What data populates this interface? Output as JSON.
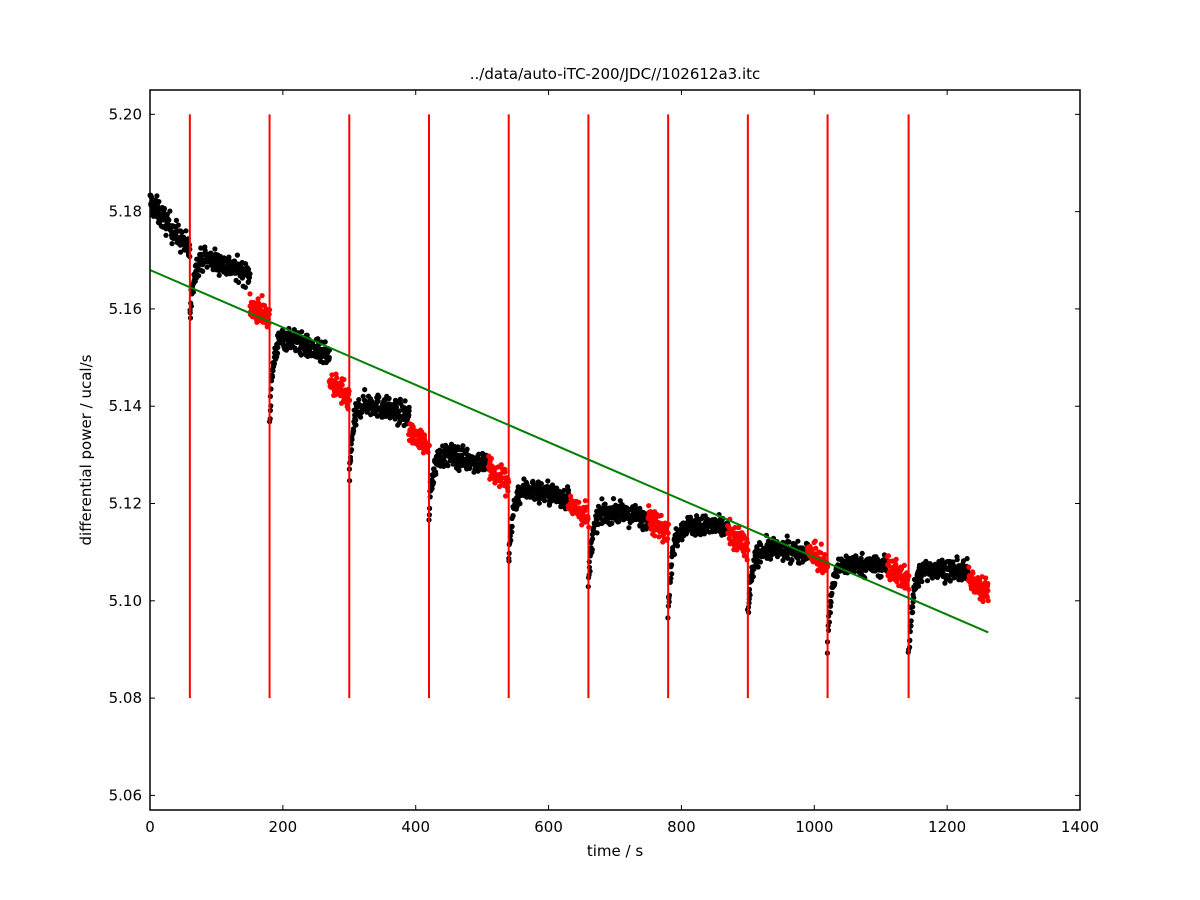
{
  "chart_data": {
    "type": "scatter",
    "title": "../data/auto-iTC-200/JDC//102612a3.itc",
    "xlabel": "time / s",
    "ylabel": "differential power / ucal/s",
    "xlim": [
      0,
      1400
    ],
    "ylim": [
      5.057,
      5.205
    ],
    "xticks": [
      0,
      200,
      400,
      600,
      800,
      1000,
      1200,
      1400
    ],
    "xtick_labels": [
      "0",
      "200",
      "400",
      "600",
      "800",
      "1000",
      "1200",
      "1400"
    ],
    "yticks": [
      5.06,
      5.08,
      5.1,
      5.12,
      5.14,
      5.16,
      5.18,
      5.2
    ],
    "ytick_labels": [
      "5.06",
      "5.08",
      "5.10",
      "5.12",
      "5.14",
      "5.16",
      "5.18",
      "5.20"
    ],
    "grid": false,
    "colors": {
      "data": "#000000",
      "fit_window": "#ff0000",
      "injection": "#ff0000",
      "baseline": "#008000"
    },
    "injection_times": [
      60,
      180,
      300,
      420,
      540,
      660,
      780,
      900,
      1020,
      1142
    ],
    "injection_line_range": [
      5.08,
      5.2
    ],
    "baseline_fit": {
      "x": [
        0,
        1262
      ],
      "y": [
        5.168,
        5.0935
      ]
    },
    "trace_segments": [
      {
        "x0": 0,
        "x1": 60,
        "y0": 5.182,
        "y1": 5.172,
        "noise": 0.0025
      },
      {
        "x0": 60,
        "x1": 150,
        "y0": 5.158,
        "y1": 5.167,
        "dip": 5.158,
        "noise": 0.0022,
        "shoulder": 5.172
      },
      {
        "x0": 180,
        "x1": 270,
        "y0": 5.138,
        "y1": 5.15,
        "dip": 5.138,
        "noise": 0.0022,
        "shoulder": 5.156
      },
      {
        "x0": 300,
        "x1": 390,
        "y0": 5.125,
        "y1": 5.138,
        "dip": 5.125,
        "noise": 0.0022,
        "shoulder": 5.142
      },
      {
        "x0": 420,
        "x1": 510,
        "y0": 5.118,
        "y1": 5.128,
        "dip": 5.118,
        "noise": 0.0022,
        "shoulder": 5.131
      },
      {
        "x0": 540,
        "x1": 630,
        "y0": 5.108,
        "y1": 5.121,
        "dip": 5.108,
        "noise": 0.0022,
        "shoulder": 5.124
      },
      {
        "x0": 660,
        "x1": 750,
        "y0": 5.103,
        "y1": 5.117,
        "dip": 5.103,
        "noise": 0.002,
        "shoulder": 5.119
      },
      {
        "x0": 780,
        "x1": 870,
        "y0": 5.097,
        "y1": 5.115,
        "dip": 5.097,
        "noise": 0.002,
        "shoulder": 5.116
      },
      {
        "x0": 900,
        "x1": 990,
        "y0": 5.097,
        "y1": 5.11,
        "dip": 5.097,
        "noise": 0.002,
        "shoulder": 5.111
      },
      {
        "x0": 1020,
        "x1": 1110,
        "y0": 5.091,
        "y1": 5.107,
        "dip": 5.091,
        "noise": 0.002,
        "shoulder": 5.108
      },
      {
        "x0": 1142,
        "x1": 1232,
        "y0": 5.089,
        "y1": 5.106,
        "dip": 5.089,
        "noise": 0.002,
        "shoulder": 5.107
      }
    ],
    "fit_windows": [
      {
        "x0": 150,
        "x1": 180,
        "y": 5.161
      },
      {
        "x0": 270,
        "x1": 300,
        "y": 5.145
      },
      {
        "x0": 390,
        "x1": 420,
        "y": 5.135
      },
      {
        "x0": 510,
        "x1": 540,
        "y": 5.127
      },
      {
        "x0": 630,
        "x1": 660,
        "y": 5.12
      },
      {
        "x0": 750,
        "x1": 780,
        "y": 5.117
      },
      {
        "x0": 870,
        "x1": 900,
        "y": 5.114
      },
      {
        "x0": 990,
        "x1": 1020,
        "y": 5.11
      },
      {
        "x0": 1110,
        "x1": 1142,
        "y": 5.107
      },
      {
        "x0": 1232,
        "x1": 1262,
        "y": 5.105
      }
    ]
  }
}
